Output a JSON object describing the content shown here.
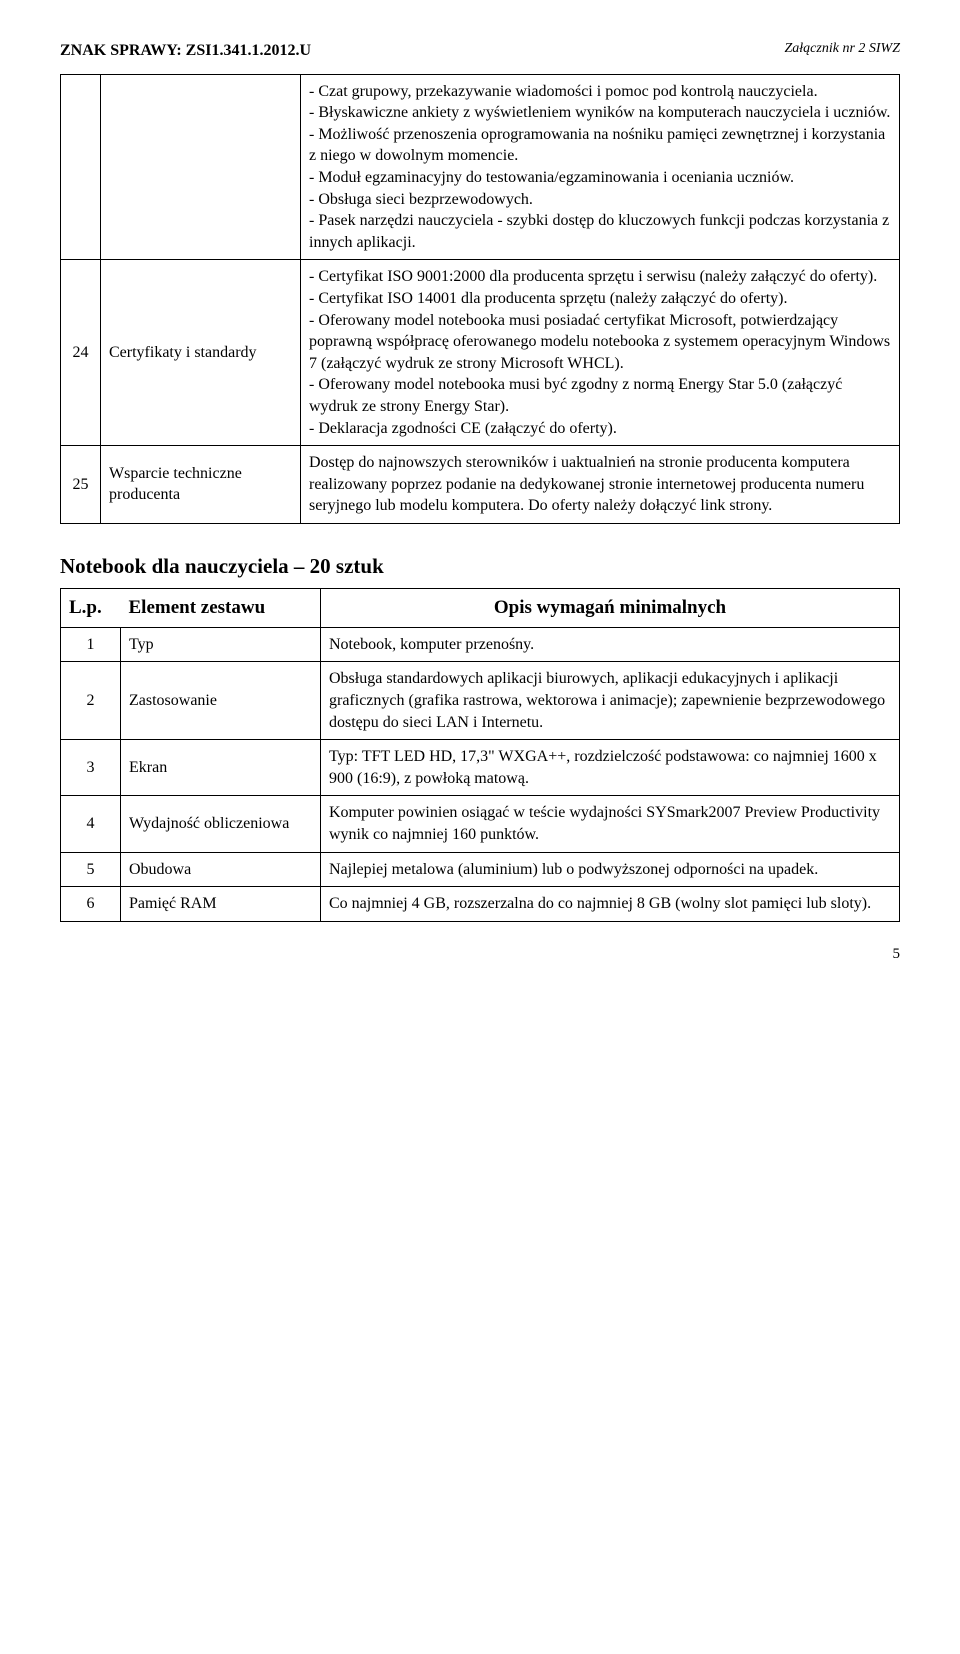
{
  "header": {
    "znak": "ZNAK SPRAWY: ZSI1.341.1.2012.U",
    "zalacznik": "Załącznik nr 2 SIWZ"
  },
  "topTable": {
    "row0_desc": "- Czat grupowy, przekazywanie wiadomości i pomoc pod kontrolą nauczyciela.\n- Błyskawiczne ankiety z wyświetleniem wyników na komputerach nauczyciela i uczniów.\n- Możliwość przenoszenia oprogramowania na nośniku pamięci zewnętrznej i korzystania z niego w dowolnym momencie.\n- Moduł egzaminacyjny do testowania/egzaminowania i oceniania uczniów.\n- Obsługa sieci bezprzewodowych.\n- Pasek narzędzi nauczyciela - szybki dostęp do kluczowych funkcji podczas korzystania z innych aplikacji.",
    "row1_num": "24",
    "row1_label": "Certyfikaty i standardy",
    "row1_desc": "- Certyfikat ISO 9001:2000 dla producenta sprzętu i serwisu (należy załączyć do oferty).\n- Certyfikat ISO 14001 dla producenta sprzętu (należy załączyć do oferty).\n- Oferowany model notebooka musi posiadać certyfikat Microsoft, potwierdzający poprawną współpracę oferowanego modelu notebooka z systemem operacyjnym Windows 7 (załączyć wydruk ze strony Microsoft WHCL).\n- Oferowany model notebooka musi być zgodny z normą Energy Star 5.0 (załączyć wydruk ze strony Energy Star).\n- Deklaracja zgodności CE (załączyć do oferty).",
    "row2_num": "25",
    "row2_label": "Wsparcie techniczne producenta",
    "row2_desc": "Dostęp do najnowszych sterowników i uaktualnień na stronie producenta komputera realizowany poprzez podanie na dedykowanej stronie internetowej producenta numeru seryjnego lub modelu komputera. Do oferty należy dołączyć link strony."
  },
  "sectionTitle": "Notebook dla nauczyciela – 20 sztuk",
  "bottomTable": {
    "header": {
      "lp": "L.p.",
      "element": "Element zestawu",
      "opis": "Opis wymagań minimalnych"
    },
    "rows": [
      {
        "num": "1",
        "label": "Typ",
        "desc": "Notebook, komputer przenośny."
      },
      {
        "num": "2",
        "label": "Zastosowanie",
        "desc": "Obsługa standardowych aplikacji biurowych, aplikacji edukacyjnych i aplikacji graficznych (grafika rastrowa, wektorowa i animacje); zapewnienie bezprzewodowego dostępu do sieci LAN i Internetu."
      },
      {
        "num": "3",
        "label": "Ekran",
        "desc": "Typ: TFT LED HD, 17,3\" WXGA++, rozdzielczość podstawowa:  co najmniej 1600 x 900 (16:9), z powłoką matową."
      },
      {
        "num": "4",
        "label": "Wydajność obliczeniowa",
        "desc": "Komputer powinien osiągać  w teście wydajności SYSmark2007 Preview Productivity wynik co najmniej 160 punktów."
      },
      {
        "num": "5",
        "label": "Obudowa",
        "desc": "Najlepiej metalowa (aluminium) lub o podwyższonej odporności na upadek."
      },
      {
        "num": "6",
        "label": "Pamięć RAM",
        "desc": "Co najmniej 4 GB, rozszerzalna do co najmniej 8 GB (wolny slot pamięci lub sloty)."
      }
    ]
  },
  "pageNumber": "5"
}
